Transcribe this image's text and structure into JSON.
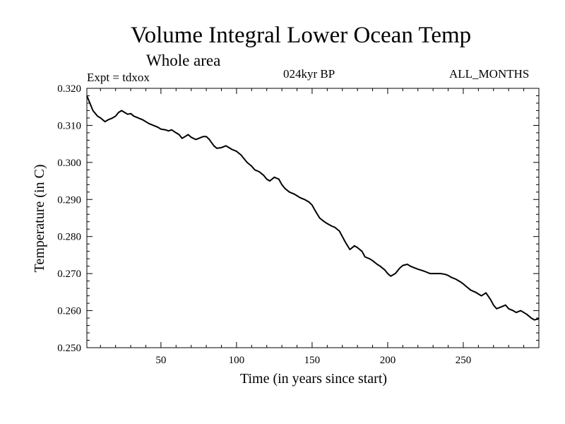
{
  "header": {
    "title": "Volume Integral Lower Ocean Temp",
    "subtitle": "Whole area",
    "experiment": "Expt = tdxox",
    "period": "024kyr BP",
    "months": "ALL_MONTHS"
  },
  "chart_data": {
    "type": "line",
    "title": "Volume Integral Lower Ocean Temp",
    "subtitle": "Whole area",
    "xlabel": "Time (in years since start)",
    "ylabel": "Temperature (in C)",
    "xlim": [
      1,
      300
    ],
    "ylim": [
      0.25,
      0.32
    ],
    "xticks": [
      50,
      100,
      150,
      200,
      250
    ],
    "yticks": [
      0.25,
      0.26,
      0.27,
      0.28,
      0.29,
      0.3,
      0.31,
      0.32
    ],
    "ytick_labels": [
      "0.250",
      "0.260",
      "0.270",
      "0.280",
      "0.290",
      "0.300",
      "0.310",
      "0.320"
    ],
    "grid": false,
    "series": [
      {
        "color": "#000000",
        "x": [
          1,
          3,
          5,
          8,
          10,
          13,
          15,
          18,
          20,
          22,
          24,
          26,
          28,
          30,
          32,
          35,
          38,
          40,
          42,
          45,
          48,
          50,
          53,
          55,
          57,
          60,
          62,
          64,
          66,
          68,
          70,
          73,
          75,
          78,
          80,
          82,
          85,
          87,
          90,
          93,
          95,
          97,
          100,
          103,
          105,
          107,
          110,
          112,
          115,
          118,
          120,
          122,
          125,
          128,
          130,
          132,
          135,
          138,
          140,
          142,
          145,
          148,
          150,
          152,
          155,
          158,
          160,
          163,
          165,
          168,
          170,
          172,
          175,
          178,
          180,
          183,
          185,
          188,
          190,
          193,
          195,
          198,
          200,
          202,
          205,
          208,
          210,
          213,
          215,
          218,
          220,
          223,
          225,
          228,
          230,
          232,
          235,
          238,
          240,
          242,
          245,
          248,
          250,
          252,
          255,
          258,
          260,
          262,
          265,
          268,
          270,
          272,
          275,
          278,
          280,
          283,
          285,
          288,
          290,
          292,
          295,
          297,
          300
        ],
        "y": [
          0.318,
          0.316,
          0.314,
          0.3125,
          0.312,
          0.311,
          0.3115,
          0.312,
          0.3125,
          0.3135,
          0.314,
          0.3135,
          0.313,
          0.3132,
          0.3125,
          0.312,
          0.3115,
          0.311,
          0.3105,
          0.31,
          0.3095,
          0.309,
          0.3088,
          0.3085,
          0.3088,
          0.308,
          0.3075,
          0.3065,
          0.307,
          0.3075,
          0.3068,
          0.3062,
          0.3065,
          0.307,
          0.307,
          0.3062,
          0.3045,
          0.3038,
          0.304,
          0.3045,
          0.304,
          0.3035,
          0.303,
          0.302,
          0.301,
          0.3,
          0.299,
          0.298,
          0.2975,
          0.2965,
          0.2955,
          0.295,
          0.296,
          0.2955,
          0.294,
          0.293,
          0.292,
          0.2915,
          0.291,
          0.2905,
          0.29,
          0.2893,
          0.2885,
          0.287,
          0.285,
          0.284,
          0.2835,
          0.2828,
          0.2825,
          0.2815,
          0.28,
          0.2785,
          0.2765,
          0.2775,
          0.277,
          0.276,
          0.2745,
          0.274,
          0.2735,
          0.2725,
          0.272,
          0.271,
          0.27,
          0.2693,
          0.27,
          0.2715,
          0.2722,
          0.2725,
          0.272,
          0.2715,
          0.2712,
          0.2708,
          0.2705,
          0.27,
          0.27,
          0.27,
          0.27,
          0.2698,
          0.2695,
          0.269,
          0.2685,
          0.2678,
          0.2672,
          0.2665,
          0.2655,
          0.265,
          0.2645,
          0.264,
          0.2648,
          0.263,
          0.2615,
          0.2605,
          0.261,
          0.2615,
          0.2605,
          0.26,
          0.2595,
          0.26,
          0.2595,
          0.259,
          0.258,
          0.2575,
          0.2578
        ]
      }
    ]
  }
}
